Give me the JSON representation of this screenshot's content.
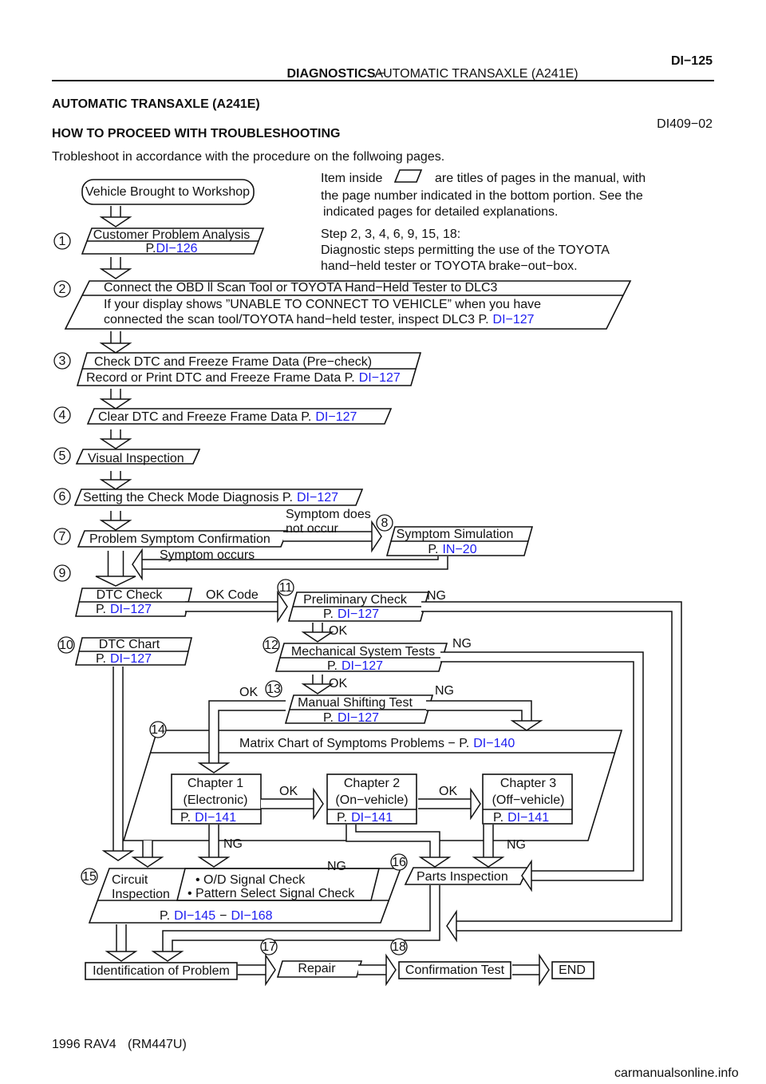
{
  "header": {
    "section": "DIAGNOSTICS",
    "separator": "−",
    "subject": "AUTOMATIC TRANSAXLE (A241E)",
    "page_number": "DI−125"
  },
  "title": "AUTOMATIC TRANSAXLE (A241E)",
  "doc_code": "DI409−02",
  "heading": "HOW TO PROCEED WITH TROUBLESHOOTING",
  "intro": "Trobleshoot in accordance with the procedure on the follwoing pages.",
  "legend": {
    "before_icon": "Item inside",
    "after_icon": "are titles of pages in the manual, with",
    "lines": [
      "the page number indicated in the bottom portion. See the",
      "indicated pages for detailed explanations."
    ]
  },
  "tester_note": [
    "Step 2, 3, 4, 6, 9, 15, 18:",
    "Diagnostic steps permitting the use of the TOYOTA",
    "hand−held tester or TOYOTA brake−out−box."
  ],
  "start": "Vehicle Brought to Workshop",
  "steps": [
    {
      "number": "1",
      "lines": [
        "Customer Problem Analysis"
      ],
      "ref_prefix": "P.",
      "ref": "DI−126"
    },
    {
      "number": "2",
      "lines": [
        "Connect the OBD ll Scan Tool or TOYOTA Hand−Held Tester to DLC3",
        "If your display shows ”UNABLE TO CONNECT TO VEHICLE” when you have",
        "connected the scan tool/TOYOTA hand−held tester, inspect DLC3 P."
      ],
      "ref": "DI−127"
    },
    {
      "number": "3",
      "lines": [
        "Check DTC and Freeze Frame Data (Pre−check)",
        "Record or Print DTC and Freeze Frame Data P."
      ],
      "ref": "DI−127"
    },
    {
      "number": "4",
      "lines": [
        "Clear DTC and Freeze Frame Data P."
      ],
      "ref": "DI−127"
    },
    {
      "number": "5",
      "lines": [
        "Visual Inspection"
      ]
    },
    {
      "number": "6",
      "lines": [
        "Setting the Check Mode Diagnosis P."
      ],
      "ref": "DI−127"
    },
    {
      "number": "7",
      "lines": [
        "Problem Symptom Confirmation"
      ]
    },
    {
      "number": "8",
      "lines": [
        "Symptom Simulation"
      ],
      "ref_prefix": "P.",
      "ref": "IN−20"
    },
    {
      "number": "9",
      "lines": [
        "DTC Check"
      ],
      "ref_prefix": "P.",
      "ref": "DI−127"
    },
    {
      "number": "10",
      "lines": [
        "DTC Chart"
      ],
      "ref_prefix": "P.",
      "ref": "DI−127"
    },
    {
      "number": "11",
      "lines": [
        "Preliminary Check"
      ],
      "ref_prefix": "P.",
      "ref": "DI−127"
    },
    {
      "number": "12",
      "lines": [
        "Mechanical System Tests"
      ],
      "ref_prefix": "P.",
      "ref": "DI−127"
    },
    {
      "number": "13",
      "lines": [
        "Manual Shifting Test"
      ],
      "ref_prefix": "P.",
      "ref": "DI−127"
    },
    {
      "number": "14",
      "lines": [
        "Matrix Chart of Symptoms Problems − P."
      ],
      "ref": "DI−140",
      "chapters": [
        {
          "title": "Chapter 1",
          "scope": "(Electronic)",
          "ref_prefix": "P.",
          "ref": "DI−141"
        },
        {
          "title": "Chapter 2",
          "scope": "(On−vehicle)",
          "ref_prefix": "P.",
          "ref": "DI−141"
        },
        {
          "title": "Chapter 3",
          "scope": "(Off−vehicle)",
          "ref_prefix": "P.",
          "ref": "DI−141"
        }
      ]
    },
    {
      "number": "15",
      "lines": [
        "Circuit",
        "Inspection"
      ],
      "options": [
        "• O/D  Signal Check",
        "• Pattern Select Signal Check"
      ],
      "ref_prefix": "P.",
      "ref": "DI−145",
      "ref_separator": "−",
      "ref_end": "DI−168"
    },
    {
      "number": "16",
      "lines": [
        "Parts Inspection"
      ]
    },
    {
      "number": "17",
      "lines": [
        "Repair"
      ]
    },
    {
      "number": "18",
      "lines": [
        "Confirmation Test"
      ]
    }
  ],
  "identification": "Identification of Problem",
  "end": "END",
  "branch_labels": [
    "Symptom does",
    "not occur",
    "Symptom occurs",
    "OK Code",
    "NG",
    "OK",
    "NG",
    "OK",
    "OK",
    "NG",
    "OK",
    "OK",
    "NG",
    "NG",
    "NG"
  ],
  "footer": {
    "model": "1996 RAV4",
    "code": "(RM447U)"
  },
  "watermark": "carmanualsonline.info"
}
